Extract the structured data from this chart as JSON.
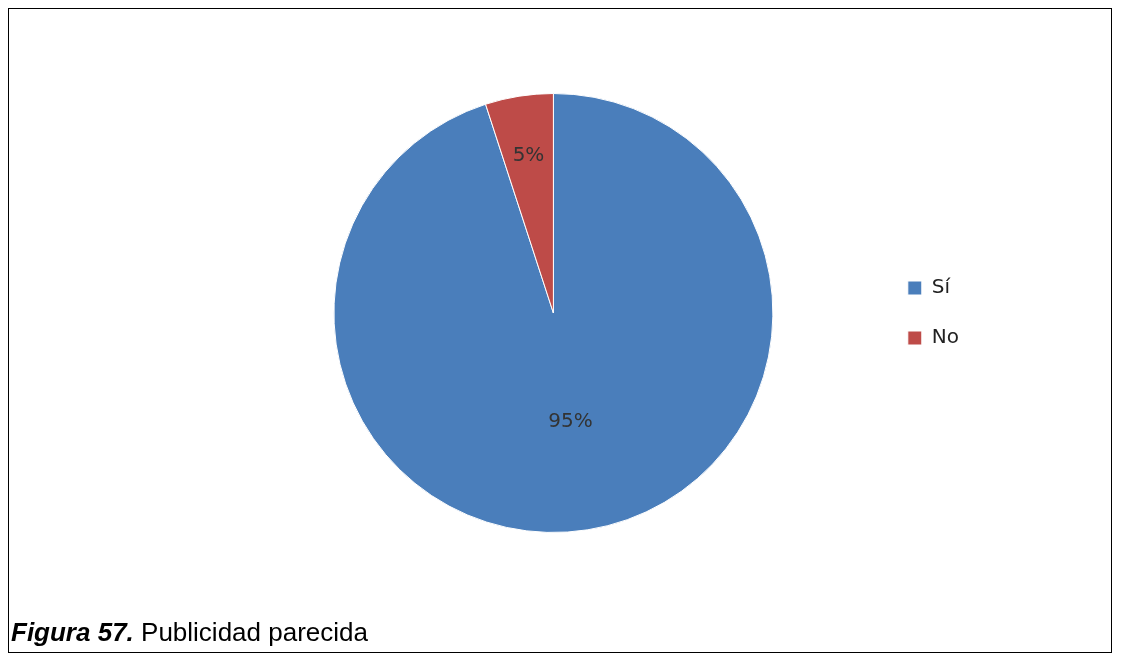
{
  "chart_data": {
    "type": "pie",
    "categories": [
      "Sí",
      "No"
    ],
    "values": [
      95,
      5
    ],
    "colors": [
      "#4a7ebb",
      "#be4b48"
    ],
    "value_labels": [
      "95%",
      "5%"
    ],
    "legend": "right",
    "annotations": [
      "Figura 57. Publicidad parecida"
    ]
  }
}
